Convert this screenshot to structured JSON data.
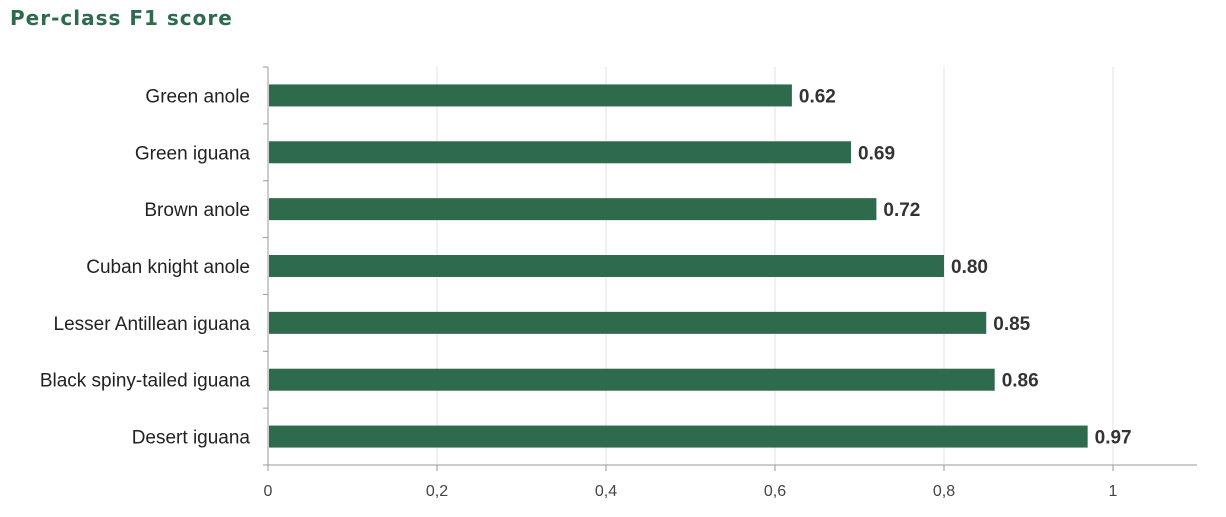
{
  "colors": {
    "bar": "#2e6a4c",
    "title": "#2e6a4c",
    "grid": "#e2e2e2",
    "axis": "#999999"
  },
  "chart_data": {
    "type": "bar",
    "orientation": "horizontal",
    "title": "Per-class F1 score",
    "xlabel": "",
    "ylabel": "",
    "xlim": [
      0,
      1.1
    ],
    "xticks": [
      0,
      0.2,
      0.4,
      0.6,
      0.8,
      1
    ],
    "xtick_labels": [
      "0",
      "0,2",
      "0,4",
      "0,6",
      "0,8",
      "1"
    ],
    "grid": "vertical",
    "categories": [
      "Green anole",
      "Green iguana",
      "Brown anole",
      "Cuban knight anole",
      "Lesser Antillean iguana",
      "Black spiny-tailed iguana",
      "Desert iguana"
    ],
    "values": [
      0.62,
      0.69,
      0.72,
      0.8,
      0.85,
      0.86,
      0.97
    ],
    "value_labels": [
      "0.62",
      "0.69",
      "0.72",
      "0.80",
      "0.85",
      "0.86",
      "0.97"
    ]
  }
}
